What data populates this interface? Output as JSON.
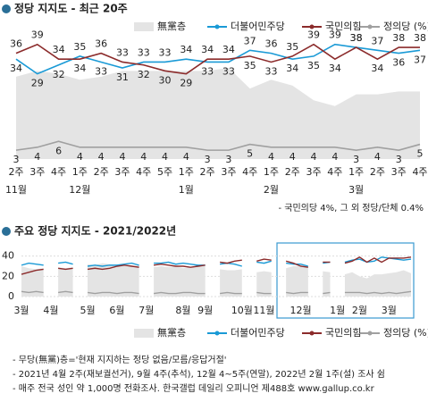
{
  "chart_data": [
    {
      "type": "line",
      "title": "정당 지지도 - 최근 20주",
      "categories": [
        "2주",
        "3주",
        "4주",
        "1주",
        "2주",
        "3주",
        "4주",
        "5주",
        "1주",
        "2주",
        "3주",
        "4주",
        "1주",
        "2주",
        "3주",
        "4주",
        "1주",
        "2주",
        "3주",
        "4주"
      ],
      "groups": [
        "11월",
        null,
        null,
        "12월",
        null,
        null,
        null,
        null,
        "1월",
        null,
        null,
        null,
        "2월",
        null,
        null,
        null,
        "3월",
        null,
        null,
        null
      ],
      "ylim": [
        0,
        45
      ],
      "data_labels": true,
      "series": [
        {
          "name": "無黨층",
          "type": "area",
          "color": "#e4e4e4",
          "values": [
            28,
            30,
            29,
            27,
            28,
            30,
            30,
            30,
            30,
            30,
            31,
            24,
            27,
            25,
            20,
            18,
            22,
            22,
            23,
            23
          ]
        },
        {
          "name": "더불어민주당",
          "color": "#1a9ad6",
          "values": [
            34,
            29,
            32,
            35,
            33,
            31,
            33,
            33,
            34,
            33,
            33,
            37,
            36,
            34,
            35,
            39,
            38,
            37,
            36,
            37
          ]
        },
        {
          "name": "국민의힘",
          "color": "#8b2b2b",
          "values": [
            36,
            39,
            34,
            34,
            36,
            33,
            32,
            30,
            29,
            34,
            34,
            35,
            33,
            35,
            39,
            34,
            38,
            34,
            38,
            38
          ]
        },
        {
          "name": "정의당 (%)",
          "color": "#a0a0a0",
          "values": [
            3,
            4,
            6,
            4,
            4,
            4,
            4,
            4,
            4,
            3,
            3,
            5,
            4,
            4,
            4,
            4,
            3,
            4,
            3,
            5
          ]
        }
      ],
      "note": "- 국민의당 4%, 그 외 정당/단체 0.4%"
    },
    {
      "type": "line",
      "title": "주요 정당 지지도 - 2021/2022년",
      "categories": [
        "3월",
        null,
        null,
        null,
        "4월",
        null,
        null,
        null,
        null,
        "5월",
        null,
        null,
        null,
        "6월",
        null,
        null,
        null,
        "7월",
        null,
        null,
        null,
        null,
        "8월",
        null,
        null,
        "9월",
        null,
        null,
        null,
        null,
        "10월",
        null,
        null,
        "11월",
        null,
        null,
        null,
        null,
        "12월",
        null,
        null,
        null,
        null,
        "1월",
        null,
        null,
        "2월",
        null,
        null,
        null,
        "3월",
        null,
        null,
        null
      ],
      "ylim": [
        0,
        45
      ],
      "yticks": [
        0,
        20,
        40
      ],
      "grid": true,
      "data_labels": false,
      "series": [
        {
          "name": "無黨층",
          "type": "area",
          "color": "#e4e4e4",
          "values": [
            30,
            28,
            27,
            28,
            null,
            29,
            28,
            29,
            null,
            32,
            31,
            33,
            32,
            31,
            30,
            30,
            31,
            null,
            29,
            30,
            29,
            30,
            28,
            29,
            30,
            30,
            null,
            27,
            26,
            26,
            27,
            null,
            24,
            25,
            24,
            null,
            28,
            30,
            30,
            29,
            null,
            25,
            24,
            null,
            22,
            24,
            20,
            18,
            22,
            22,
            23,
            24,
            26,
            23
          ]
        },
        {
          "name": "더불어민주당",
          "color": "#1a9ad6",
          "values": [
            31,
            33,
            32,
            31,
            null,
            33,
            34,
            32,
            null,
            30,
            31,
            30,
            31,
            31,
            32,
            33,
            31,
            null,
            33,
            33,
            34,
            32,
            33,
            32,
            31,
            31,
            null,
            32,
            33,
            32,
            30,
            null,
            34,
            33,
            35,
            null,
            33,
            32,
            32,
            30,
            null,
            33,
            34,
            null,
            34,
            36,
            37,
            34,
            35,
            39,
            38,
            37,
            36,
            37
          ]
        },
        {
          "name": "국민의힘",
          "color": "#8b2b2b",
          "values": [
            22,
            24,
            26,
            27,
            null,
            28,
            27,
            28,
            null,
            27,
            28,
            27,
            28,
            30,
            31,
            30,
            29,
            null,
            31,
            32,
            31,
            30,
            30,
            29,
            30,
            31,
            null,
            34,
            33,
            35,
            36,
            null,
            35,
            37,
            36,
            null,
            35,
            33,
            30,
            29,
            null,
            34,
            34,
            null,
            33,
            35,
            39,
            34,
            38,
            34,
            38,
            38,
            38,
            39
          ]
        },
        {
          "name": "정의당 (%)",
          "color": "#a0a0a0",
          "values": [
            5,
            4,
            5,
            4,
            null,
            4,
            5,
            4,
            null,
            4,
            3,
            4,
            4,
            3,
            4,
            4,
            3,
            null,
            3,
            4,
            3,
            3,
            4,
            4,
            3,
            3,
            null,
            3,
            4,
            3,
            3,
            null,
            4,
            3,
            3,
            null,
            4,
            3,
            4,
            4,
            null,
            3,
            4,
            null,
            4,
            4,
            4,
            3,
            4,
            3,
            4,
            3,
            4,
            5
          ]
        }
      ]
    }
  ],
  "notes": [
    "- 무당(無黨)층='현재 지지하는 정당 없음/모름/응답거절'",
    "- 2021년 4월 2주(재보궐선거), 9월 4주(추석), 12월 4~5주(연말), 2022년 2월 1주(설) 조사 쉼",
    "- 매주 전국 성인 약 1,000명 전화조사. 한국갤럽 데일리 오피니언 제488호 www.gallup.co.kr"
  ]
}
